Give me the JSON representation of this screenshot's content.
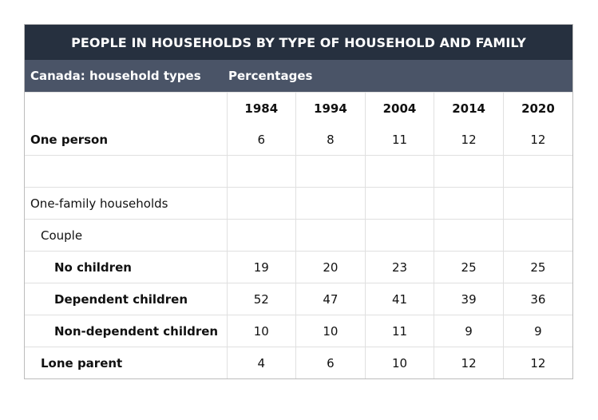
{
  "title": "PEOPLE IN HOUSEHOLDS BY TYPE OF HOUSEHOLD AND FAMILY",
  "subheader": {
    "left": "Canada: household types",
    "right": "Percentages"
  },
  "chart_data": {
    "type": "table",
    "title": "PEOPLE IN HOUSEHOLDS BY TYPE OF HOUSEHOLD AND FAMILY",
    "row_header_label": "Canada: household types",
    "unit": "Percentages",
    "columns": [
      "1984",
      "1994",
      "2004",
      "2014",
      "2020"
    ],
    "rows": [
      {
        "label": "One person",
        "values": [
          "6",
          "8",
          "11",
          "12",
          "12"
        ]
      },
      {
        "label": "",
        "values": [
          "",
          "",
          "",
          "",
          ""
        ]
      },
      {
        "label": "One-family households",
        "values": [
          "",
          "",
          "",
          "",
          ""
        ]
      },
      {
        "label": "Couple",
        "values": [
          "",
          "",
          "",
          "",
          ""
        ]
      },
      {
        "label": "No children",
        "values": [
          "19",
          "20",
          "23",
          "25",
          "25"
        ]
      },
      {
        "label": "Dependent children",
        "values": [
          "52",
          "47",
          "41",
          "39",
          "36"
        ]
      },
      {
        "label": "Non-dependent children",
        "values": [
          "10",
          "10",
          "11",
          "9",
          "9"
        ]
      },
      {
        "label": "Lone parent",
        "values": [
          "4",
          "6",
          "10",
          "12",
          "12"
        ]
      }
    ]
  },
  "colors": {
    "title_bg": "#26303f",
    "subheader_bg": "#4a5467",
    "grid": "#e0e0e0"
  }
}
